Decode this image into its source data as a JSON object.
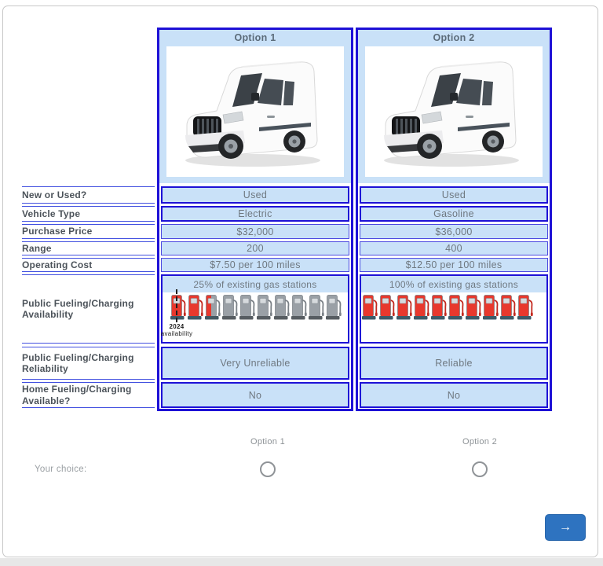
{
  "table": {
    "headers": [
      "Option 1",
      "Option 2"
    ],
    "rows": [
      {
        "key": "new_or_used",
        "label": "New or Used?",
        "values": [
          "Used",
          "Used"
        ]
      },
      {
        "key": "vehicle_type",
        "label": "Vehicle Type",
        "values": [
          "Electric",
          "Gasoline"
        ]
      },
      {
        "key": "purchase_price",
        "label": "Purchase Price",
        "values": [
          "$32,000",
          "$36,000"
        ]
      },
      {
        "key": "range",
        "label": "Range",
        "values": [
          "200",
          "400"
        ]
      },
      {
        "key": "operating_cost",
        "label": "Operating Cost",
        "values": [
          "$7.50 per 100 miles",
          "$12.50 per 100 miles"
        ]
      },
      {
        "key": "availability",
        "type": "pumps",
        "label": "Public Fueling/Charging Availability",
        "values": [
          {
            "caption": "25% of existing gas stations",
            "pumps_total": 10,
            "pumps_filled": 2.5,
            "marker": {
              "pump_index": 0,
              "line1": "2024",
              "line2": "availability"
            }
          },
          {
            "caption": "100% of existing gas stations",
            "pumps_total": 10,
            "pumps_filled": 10,
            "marker": null
          }
        ]
      },
      {
        "key": "reliability",
        "label": "Public Fueling/Charging Reliability",
        "values": [
          "Very Unreliable",
          "Reliable"
        ]
      },
      {
        "key": "home",
        "label": "Home Fueling/Charging Available?",
        "values": [
          "No",
          "No"
        ]
      }
    ]
  },
  "vehicle_image": "white-high-roof-cargo-van",
  "choice": {
    "label": "Your choice:",
    "options": [
      "Option 1",
      "Option 2"
    ],
    "selected": null
  },
  "next_button": {
    "label": "→"
  },
  "colors": {
    "table_border": "#1e11d6",
    "cell_bg": "#c9e1f8",
    "thin_line": "#4250e0",
    "pump_red": "#e8382d",
    "pump_gray": "#9aa0a6",
    "button_bg": "#2e73c0"
  }
}
